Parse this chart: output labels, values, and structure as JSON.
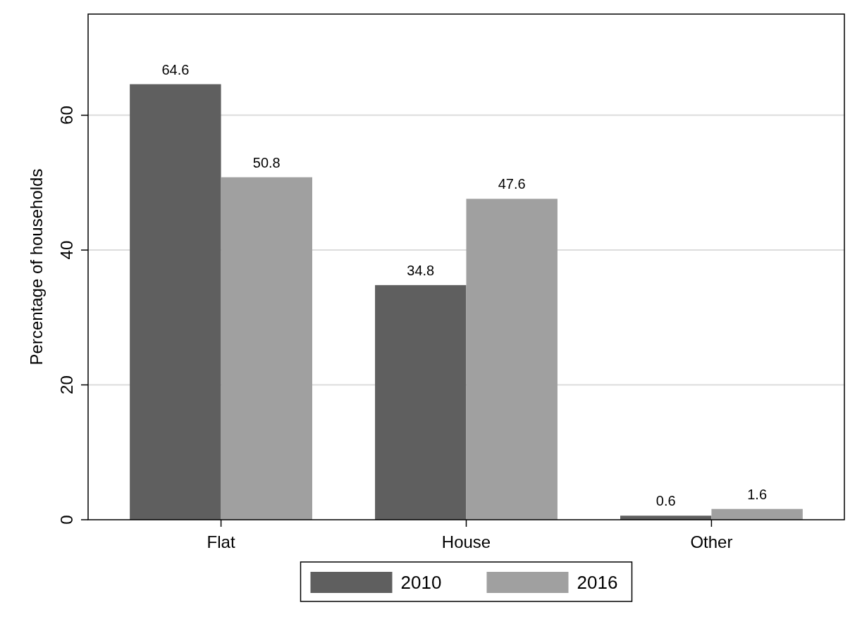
{
  "chart_data": {
    "type": "bar",
    "categories": [
      "Flat",
      "House",
      "Other"
    ],
    "series": [
      {
        "name": "2010",
        "color": "#5f5f5f",
        "values": [
          64.6,
          34.8,
          0.6
        ]
      },
      {
        "name": "2016",
        "color": "#a0a0a0",
        "values": [
          50.8,
          47.6,
          1.6
        ]
      }
    ],
    "ylabel": "Percentage of households",
    "ylim": [
      0,
      75
    ],
    "yticks": [
      0,
      20,
      40,
      60
    ],
    "grid": "y",
    "legend": "bottom",
    "data_labels": true
  }
}
